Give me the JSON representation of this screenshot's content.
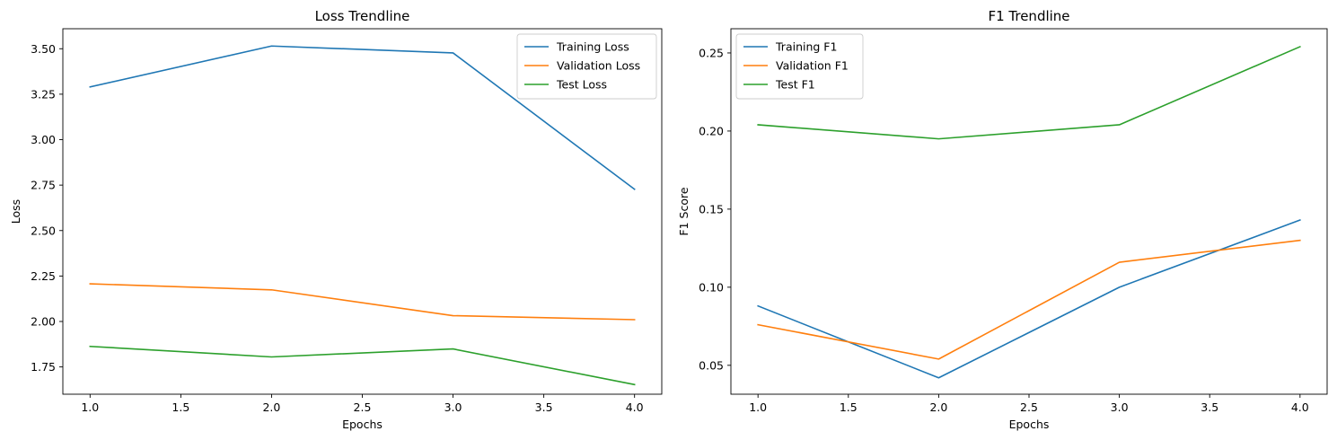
{
  "chart_data": [
    {
      "type": "line",
      "title": "Loss Trendline",
      "xlabel": "Epochs",
      "ylabel": "Loss",
      "x": [
        1,
        2,
        3,
        4
      ],
      "xlim": [
        0.85,
        4.15
      ],
      "ylim": [
        1.6,
        3.61
      ],
      "xticks": [
        "1.0",
        "1.5",
        "2.0",
        "2.5",
        "3.0",
        "3.5",
        "4.0"
      ],
      "yticks": [
        "1.75",
        "2.00",
        "2.25",
        "2.50",
        "2.75",
        "3.00",
        "3.25",
        "3.50"
      ],
      "grid": false,
      "legend_position": "top-right",
      "series": [
        {
          "name": "Training Loss",
          "color": "#1f77b4",
          "values": [
            3.29,
            3.515,
            3.477,
            2.727
          ]
        },
        {
          "name": "Validation Loss",
          "color": "#ff7f0e",
          "values": [
            2.207,
            2.174,
            2.032,
            2.01
          ]
        },
        {
          "name": "Test Loss",
          "color": "#2ca02c",
          "values": [
            1.863,
            1.805,
            1.849,
            1.653
          ]
        }
      ]
    },
    {
      "type": "line",
      "title": "F1 Trendline",
      "xlabel": "Epochs",
      "ylabel": "F1 Score",
      "x": [
        1,
        2,
        3,
        4
      ],
      "xlim": [
        0.85,
        4.15
      ],
      "ylim": [
        0.0315,
        0.2655
      ],
      "xticks": [
        "1.0",
        "1.5",
        "2.0",
        "2.5",
        "3.0",
        "3.5",
        "4.0"
      ],
      "yticks": [
        "0.05",
        "0.10",
        "0.15",
        "0.20",
        "0.25"
      ],
      "grid": false,
      "legend_position": "top-left",
      "series": [
        {
          "name": "Training F1",
          "color": "#1f77b4",
          "values": [
            0.088,
            0.042,
            0.1,
            0.143
          ]
        },
        {
          "name": "Validation F1",
          "color": "#ff7f0e",
          "values": [
            0.076,
            0.054,
            0.116,
            0.13
          ]
        },
        {
          "name": "Test F1",
          "color": "#2ca02c",
          "values": [
            0.204,
            0.195,
            0.204,
            0.254
          ]
        }
      ]
    }
  ]
}
